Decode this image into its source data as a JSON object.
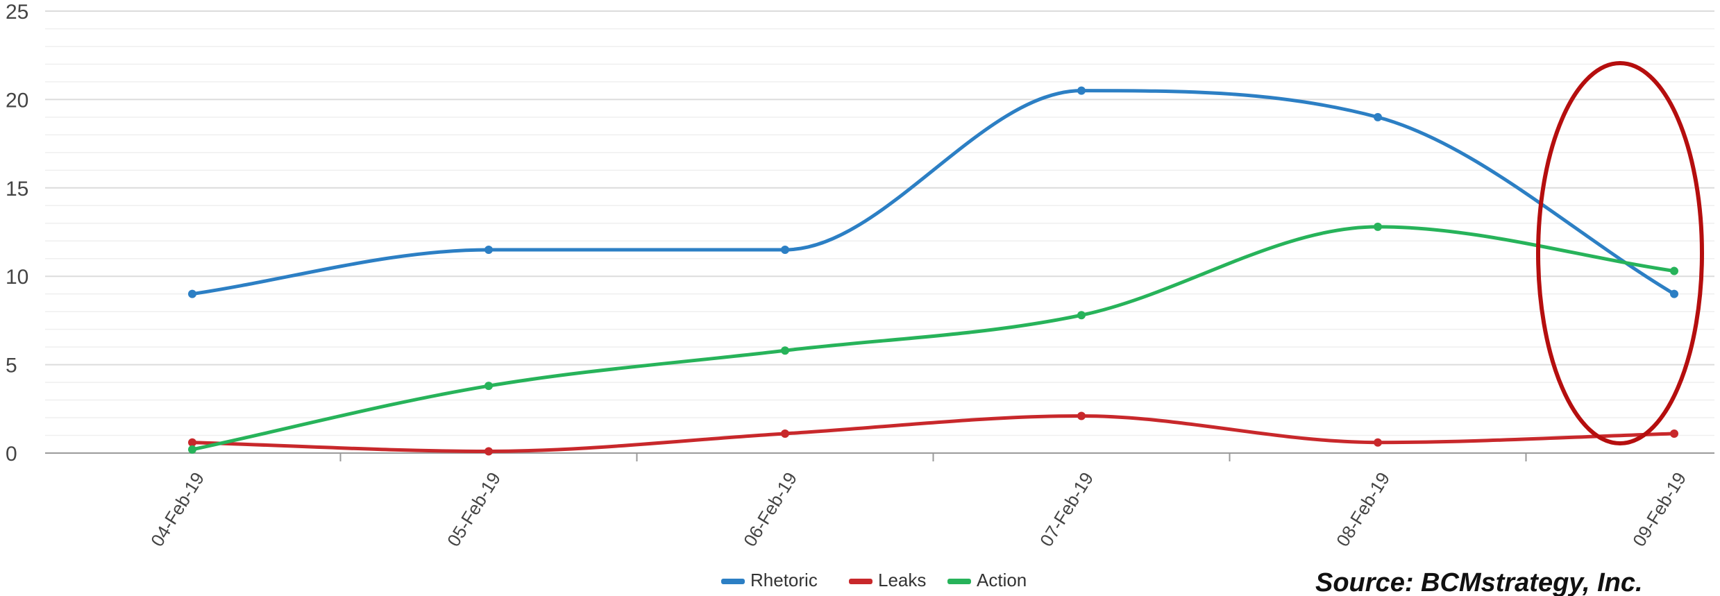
{
  "chart_data": {
    "type": "line",
    "categories": [
      "04-Feb-19",
      "05-Feb-19",
      "06-Feb-19",
      "07-Feb-19",
      "08-Feb-19",
      "09-Feb-19"
    ],
    "series": [
      {
        "name": "Rhetoric",
        "color": "#2c7fc4",
        "values": [
          9,
          11.5,
          11.5,
          20.5,
          19,
          9
        ]
      },
      {
        "name": "Leaks",
        "color": "#c8282b",
        "values": [
          0.6,
          0.1,
          1.1,
          2.1,
          0.6,
          1.1
        ]
      },
      {
        "name": "Action",
        "color": "#27b35a",
        "values": [
          0.2,
          3.8,
          5.8,
          7.8,
          12.8,
          10.3
        ]
      }
    ],
    "ylim": [
      0,
      25
    ],
    "yticks": [
      "0",
      "5",
      "10",
      "15",
      "20",
      "25"
    ],
    "grid": true,
    "legend_position": "bottom-center",
    "annotation_highlight_category": "09-Feb-19",
    "annotation_color": "#b50e0e"
  },
  "source_text": "Source:  BCMstrategy, Inc."
}
